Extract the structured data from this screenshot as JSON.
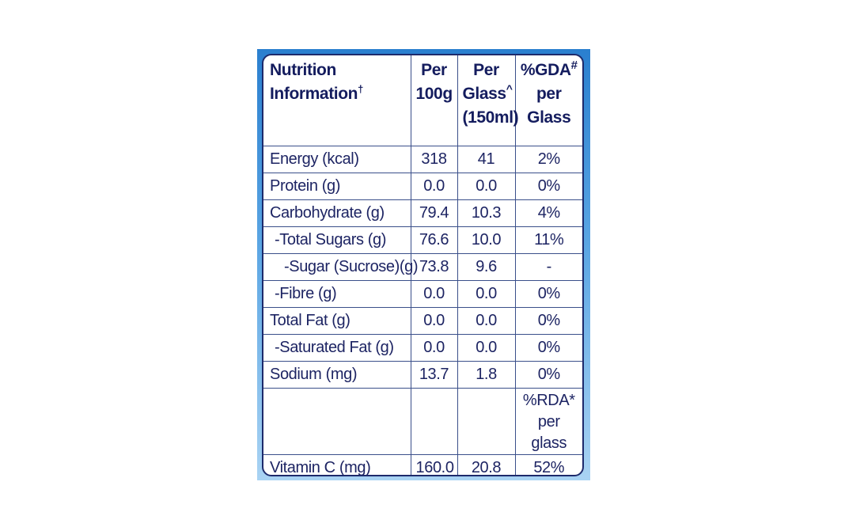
{
  "header": {
    "nutrient": "Nutrition",
    "nutrient_line2": "Information",
    "nutrient_mark": "†",
    "per100": "Per",
    "per100_line2": "100g",
    "perglass": "Per",
    "perglass_line2": "Glass",
    "perglass_mark": "^",
    "perglass_line3": "(150ml)",
    "gda": "%GDA",
    "gda_mark": "#",
    "gda_line2": "per",
    "gda_line3": "Glass"
  },
  "rows": [
    {
      "name": "Energy (kcal)",
      "per100": "318",
      "perglass": "41",
      "gda": "2%"
    },
    {
      "name": "Protein (g)",
      "per100": "0.0",
      "perglass": "0.0",
      "gda": "0%"
    },
    {
      "name": "Carbohydrate (g)",
      "per100": "79.4",
      "perglass": "10.3",
      "gda": "4%"
    },
    {
      "name": "-Total Sugars (g)",
      "per100": "76.6",
      "perglass": "10.0",
      "gda": "11%"
    },
    {
      "name": "-Sugar (Sucrose)(g)",
      "per100": "73.8",
      "perglass": "9.6",
      "gda": "-"
    },
    {
      "name": "-Fibre (g)",
      "per100": "0.0",
      "perglass": "0.0",
      "gda": "0%"
    },
    {
      "name": "Total Fat (g)",
      "per100": "0.0",
      "perglass": "0.0",
      "gda": "0%"
    },
    {
      "name": "-Saturated Fat (g)",
      "per100": "0.0",
      "perglass": "0.0",
      "gda": "0%"
    },
    {
      "name": "Sodium (mg)",
      "per100": "13.7",
      "perglass": "1.8",
      "gda": "0%"
    }
  ],
  "rda_header": {
    "line1": "%RDA*",
    "line2": "per glass"
  },
  "vitamin": {
    "name": "Vitamin C (mg)",
    "per100": "160.0",
    "perglass": "20.8",
    "rda": "52%"
  },
  "colors": {
    "text": "#1d2463",
    "border": "#3a4f8a",
    "frame_top": "#2a7fcf",
    "frame_bottom": "#a9d3f3"
  }
}
